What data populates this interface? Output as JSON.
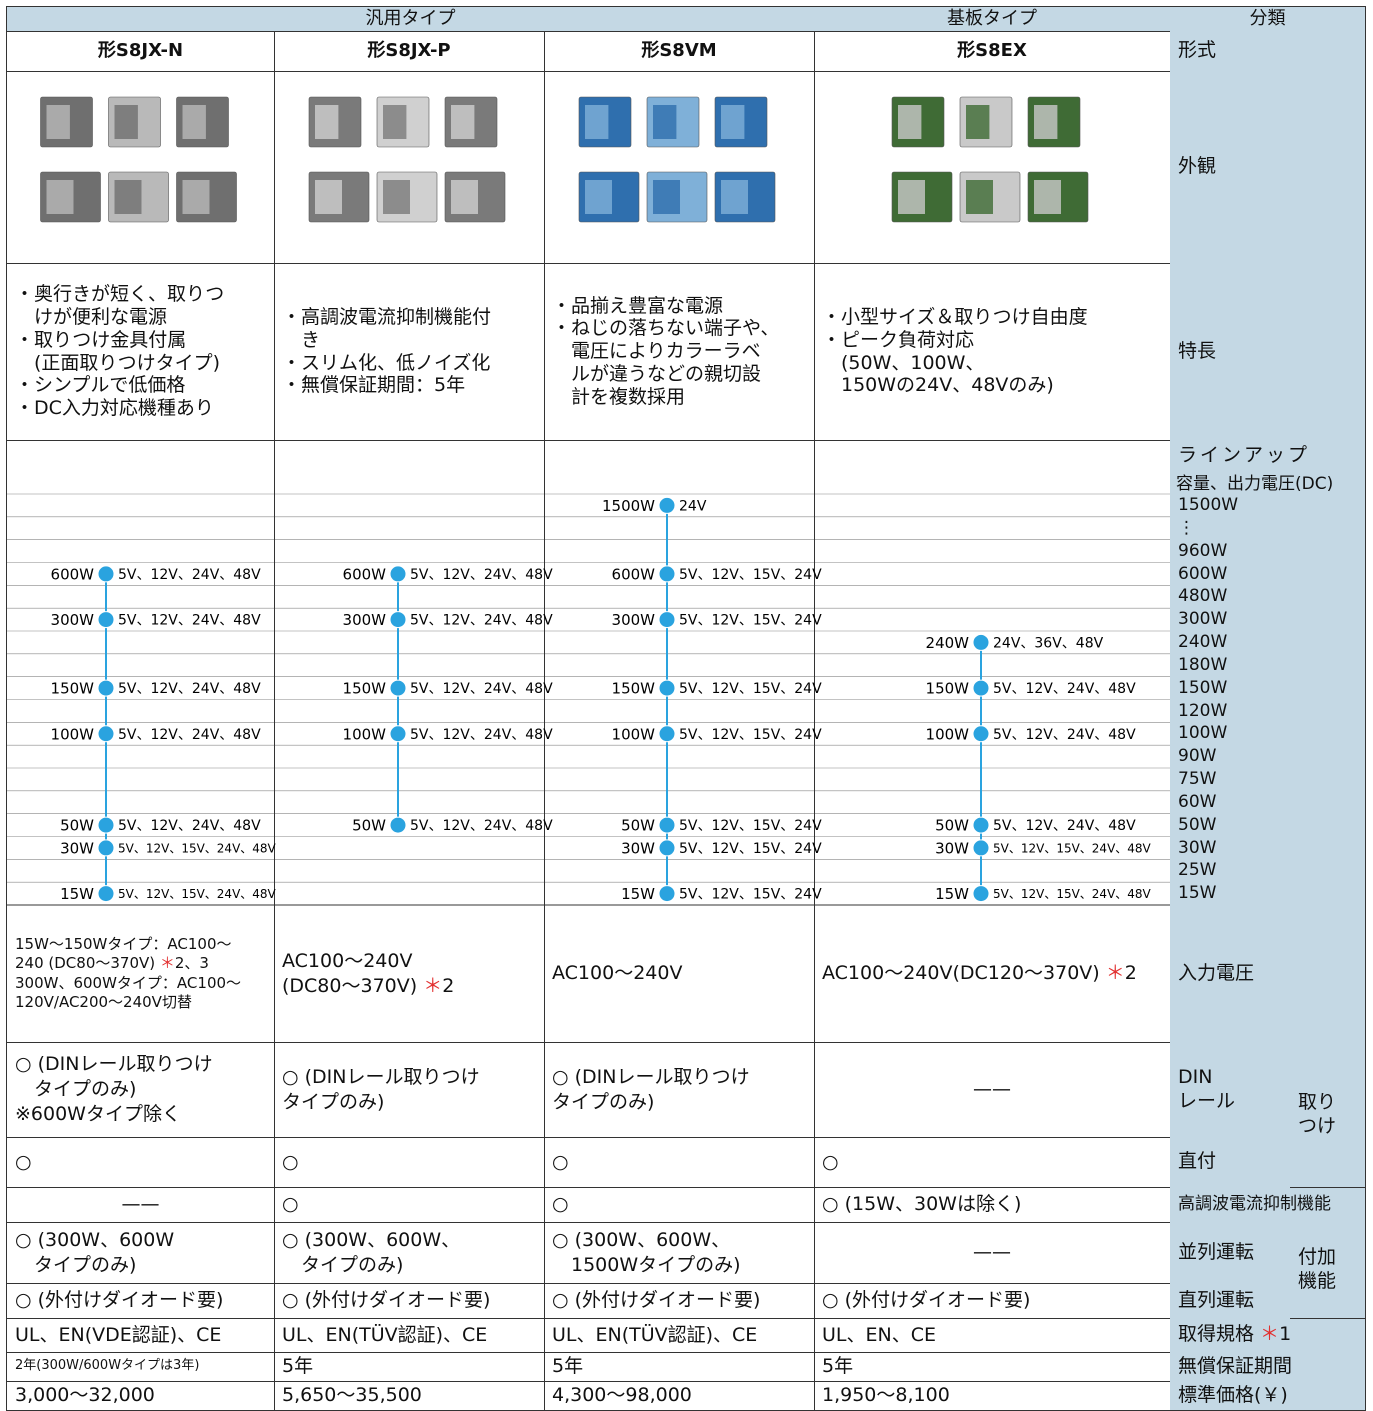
{
  "header": {
    "groups": [
      "汎用タイプ",
      "基板タイプ"
    ],
    "category": "分類",
    "models": [
      "形S8JX-N",
      "形S8JX-P",
      "形S8VM",
      "形S8EX"
    ],
    "model_label": "形式"
  },
  "appearance_label": "外観",
  "features": {
    "label": "特長",
    "cells": [
      [
        "・奥行きが短く、取りつ",
        "　けが便利な電源",
        "・取りつけ金具付属",
        "　(正面取りつけタイプ)",
        "・シンプルで低価格",
        "・DC入力対応機種あり"
      ],
      [
        "・高調波電流抑制機能付",
        "　き",
        "・スリム化、低ノイズ化",
        "・無償保証期間：5年"
      ],
      [
        "・品揃え豊富な電源",
        "・ねじの落ちない端子や、",
        "　電圧によりカラーラベ",
        "　ルが違うなどの親切設",
        "　計を複数採用"
      ],
      [
        "・小型サイズ＆取りつけ自由度",
        "・ピーク負荷対応",
        "　(50W、100W、",
        "　150Wの24V、48Vのみ)"
      ]
    ]
  },
  "lineup": {
    "label": "ラインアップ",
    "sublabel": "容量、出力電圧(DC)",
    "levels": [
      "1500W",
      "⋮",
      "960W",
      "600W",
      "480W",
      "300W",
      "240W",
      "180W",
      "150W",
      "120W",
      "100W",
      "90W",
      "75W",
      "60W",
      "50W",
      "30W",
      "25W",
      "15W"
    ],
    "series": [
      {
        "points": [
          {
            "watt": "600W",
            "volts": "5V、12V、24V、48V"
          },
          {
            "watt": "300W",
            "volts": "5V、12V、24V、48V"
          },
          {
            "watt": "150W",
            "volts": "5V、12V、24V、48V"
          },
          {
            "watt": "100W",
            "volts": "5V、12V、24V、48V"
          },
          {
            "watt": "50W",
            "volts": "5V、12V、24V、48V"
          },
          {
            "watt": "30W",
            "volts": "5V、12V、15V、24V、48V"
          },
          {
            "watt": "15W",
            "volts": "5V、12V、15V、24V、48V"
          }
        ]
      },
      {
        "points": [
          {
            "watt": "600W",
            "volts": "5V、12V、24V、48V"
          },
          {
            "watt": "300W",
            "volts": "5V、12V、24V、48V"
          },
          {
            "watt": "150W",
            "volts": "5V、12V、24V、48V"
          },
          {
            "watt": "100W",
            "volts": "5V、12V、24V、48V"
          },
          {
            "watt": "50W",
            "volts": "5V、12V、24V、48V"
          }
        ]
      },
      {
        "points": [
          {
            "watt": "1500W",
            "volts": "24V"
          },
          {
            "watt": "600W",
            "volts": "5V、12V、15V、24V"
          },
          {
            "watt": "300W",
            "volts": "5V、12V、15V、24V"
          },
          {
            "watt": "150W",
            "volts": "5V、12V、15V、24V"
          },
          {
            "watt": "100W",
            "volts": "5V、12V、15V、24V"
          },
          {
            "watt": "50W",
            "volts": "5V、12V、15V、24V"
          },
          {
            "watt": "30W",
            "volts": "5V、12V、15V、24V"
          },
          {
            "watt": "15W",
            "volts": "5V、12V、15V、24V"
          }
        ]
      },
      {
        "points": [
          {
            "watt": "240W",
            "volts": "24V、36V、48V"
          },
          {
            "watt": "150W",
            "volts": "5V、12V、24V、48V"
          },
          {
            "watt": "100W",
            "volts": "5V、12V、24V、48V"
          },
          {
            "watt": "50W",
            "volts": "5V、12V、24V、48V"
          },
          {
            "watt": "30W",
            "volts": "5V、12V、15V、24V、48V"
          },
          {
            "watt": "15W",
            "volts": "5V、12V、15V、24V、48V"
          }
        ]
      }
    ]
  },
  "spec_rows": [
    {
      "label": [
        "入力電圧"
      ],
      "cells": [
        [
          "15W〜150Wタイプ：AC100〜",
          {
            "text": "240 (DC80〜370V) ",
            "mark": "＊",
            "note": "2、3"
          },
          "300W、600Wタイプ：AC100〜",
          "120V/AC200〜240V切替"
        ],
        [
          "AC100〜240V",
          {
            "text": "(DC80〜370V) ",
            "mark": "＊",
            "note": "2"
          }
        ],
        [
          "AC100〜240V"
        ],
        [
          {
            "text": "AC100〜240V(DC120〜370V) ",
            "mark": "＊",
            "note": "2"
          }
        ]
      ]
    },
    {
      "label": [
        "DIN",
        "レール"
      ],
      "cells": [
        [
          "○ (DINレール取りつけ",
          "　タイプのみ)",
          "※600Wタイプ除く"
        ],
        [
          "○ (DINレール取りつけ",
          "タイプのみ)"
        ],
        [
          "○ (DINレール取りつけ",
          "タイプのみ)"
        ],
        [
          "——"
        ]
      ]
    },
    {
      "label": [
        "直付"
      ],
      "cells": [
        [
          "○"
        ],
        [
          "○"
        ],
        [
          "○"
        ],
        [
          "○"
        ]
      ]
    },
    {
      "label": [
        "高調波電流抑制機能"
      ],
      "cells": [
        [
          "——"
        ],
        [
          "○"
        ],
        [
          "○"
        ],
        [
          "○ (15W、30Wは除く)"
        ]
      ]
    },
    {
      "label": [
        "並列運転"
      ],
      "cells": [
        [
          "○ (300W、600W",
          "　タイプのみ)"
        ],
        [
          "○ (300W、600W、",
          "　タイプのみ)"
        ],
        [
          "○ (300W、600W、",
          "　1500Wタイプのみ)"
        ],
        [
          "——"
        ]
      ]
    },
    {
      "label": [
        "直列運転"
      ],
      "cells": [
        [
          "○ (外付けダイオード要)"
        ],
        [
          "○ (外付けダイオード要)"
        ],
        [
          "○ (外付けダイオード要)"
        ],
        [
          "○ (外付けダイオード要)"
        ]
      ]
    },
    {
      "label": [
        {
          "text": "取得規格 ",
          "mark": "＊",
          "note": "1"
        }
      ],
      "cells": [
        [
          "UL、EN(VDE認証)、CE"
        ],
        [
          "UL、EN(TÜV認証)、CE"
        ],
        [
          "UL、EN(TÜV認証)、CE"
        ],
        [
          "UL、EN、CE"
        ]
      ]
    },
    {
      "label": [
        "無償保証期間"
      ],
      "cells": [
        [
          "2年(300W/600Wタイプは3年)"
        ],
        [
          "5年"
        ],
        [
          "5年"
        ],
        [
          "5年"
        ]
      ]
    },
    {
      "label": [
        "標準価格(￥)"
      ],
      "cells": [
        [
          "3,000〜32,000"
        ],
        [
          "5,650〜35,500"
        ],
        [
          "4,300〜98,000"
        ],
        [
          "1,950〜8,100"
        ]
      ]
    }
  ],
  "mount_group": [
    "取り",
    "つけ"
  ],
  "addon_group": [
    "付加",
    "機能"
  ]
}
